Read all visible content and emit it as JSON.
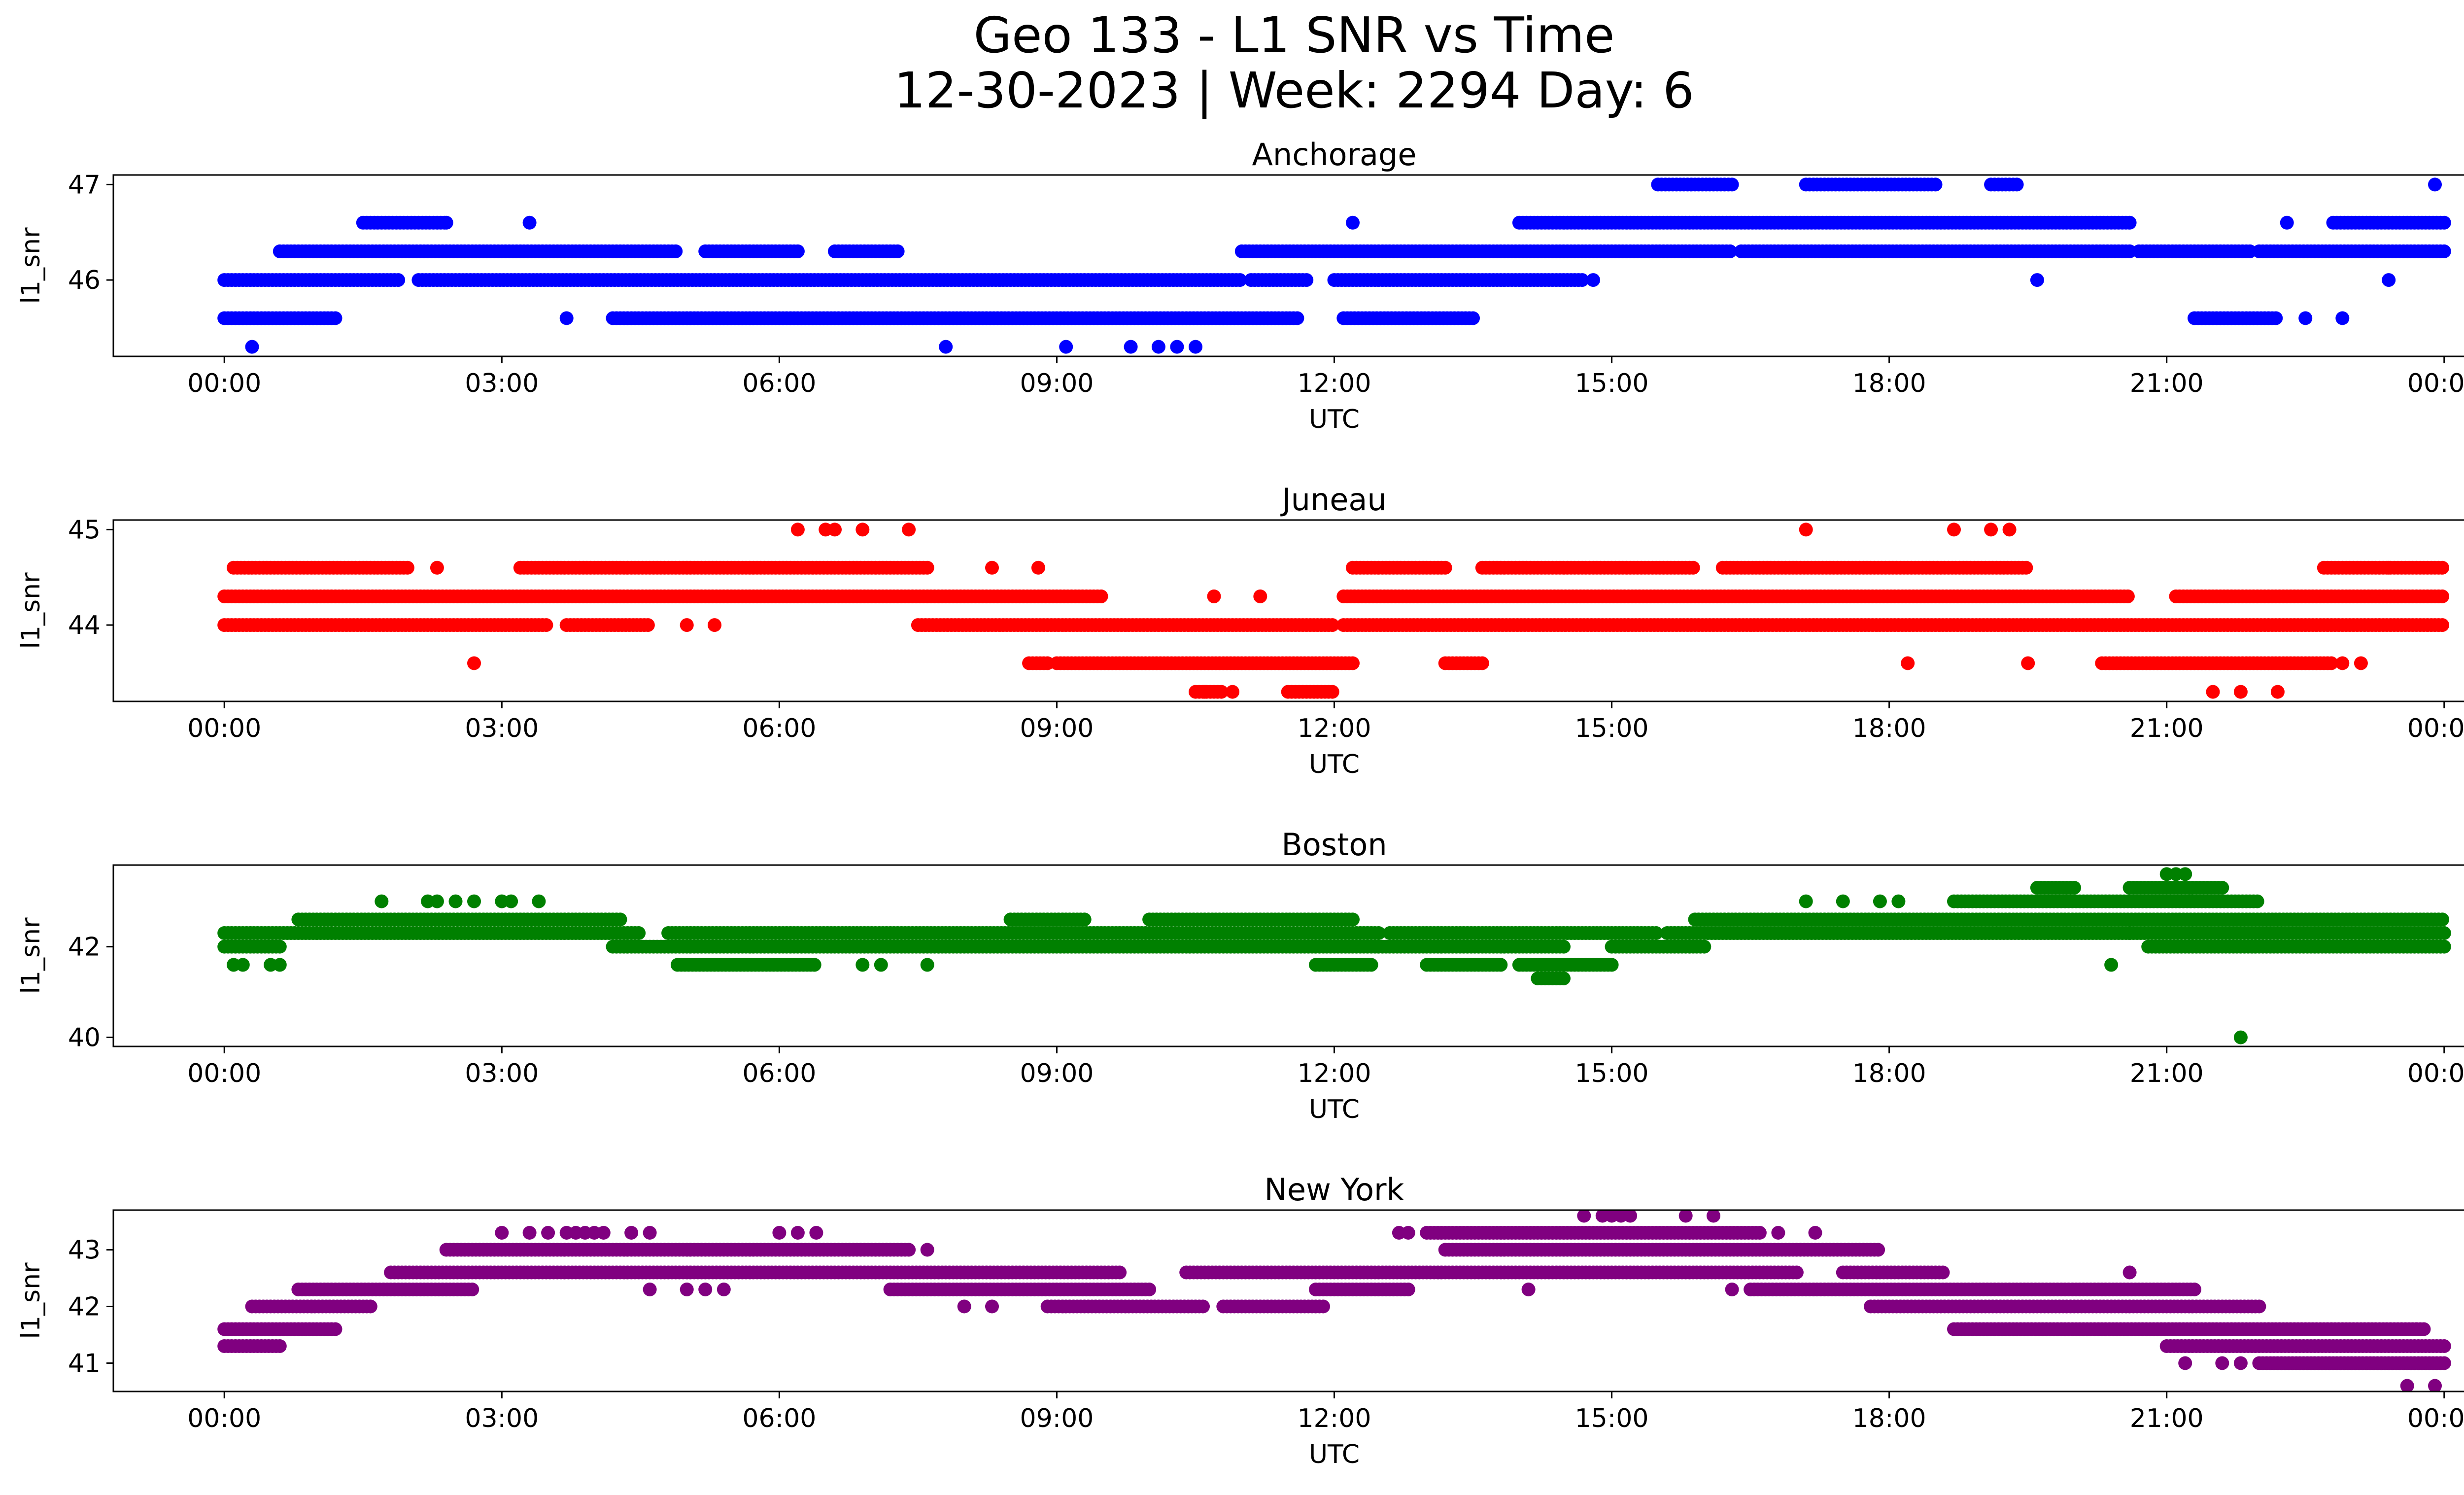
{
  "figure": {
    "title_line1": "Geo 133 - L1 SNR vs Time",
    "title_line2": "12-30-2023 | Week: 2294 Day: 6"
  },
  "x_tick_labels": [
    "00:00",
    "03:00",
    "06:00",
    "09:00",
    "12:00",
    "15:00",
    "18:00",
    "21:00",
    "00:00"
  ],
  "chart_data": [
    {
      "type": "scatter",
      "title": "Anchorage",
      "xlabel": "UTC",
      "ylabel": "l1_snr",
      "color": "#0000ff",
      "xlim_hours": [
        -1.2,
        25.2
      ],
      "ylim": [
        45.2,
        47.1
      ],
      "yticks": [
        46,
        47
      ],
      "tracks": [
        {
          "y": 46.0,
          "x": [
            0.0,
            1.9,
            2.1,
            11.0,
            11.1,
            11.7,
            12.0,
            14.7
          ]
        },
        {
          "y": 46.3,
          "x": [
            0.6,
            4.9,
            5.2,
            6.2,
            6.6,
            7.3,
            11.0,
            16.3,
            16.4,
            20.6,
            20.7,
            21.9,
            22.0,
            24.0
          ]
        },
        {
          "y": 45.6,
          "x": [
            0.0,
            1.2,
            4.2,
            11.6,
            12.1,
            13.5,
            21.3,
            22.2
          ]
        },
        {
          "y": 46.6,
          "x": [
            1.5,
            2.4,
            14.0,
            20.6,
            22.8,
            24.0
          ]
        },
        {
          "y": 47.0,
          "x": [
            15.5,
            16.3,
            17.1,
            18.5,
            19.1,
            19.4
          ]
        }
      ],
      "points": [
        {
          "x": 0.3,
          "y": 45.3
        },
        {
          "x": 7.8,
          "y": 45.3
        },
        {
          "x": 9.1,
          "y": 45.3
        },
        {
          "x": 9.8,
          "y": 45.3
        },
        {
          "x": 10.1,
          "y": 45.3
        },
        {
          "x": 10.3,
          "y": 45.3
        },
        {
          "x": 10.5,
          "y": 45.3
        },
        {
          "x": 2.4,
          "y": 46.6
        },
        {
          "x": 3.3,
          "y": 46.6
        },
        {
          "x": 12.2,
          "y": 46.6
        },
        {
          "x": 22.3,
          "y": 46.6
        },
        {
          "x": 3.7,
          "y": 45.6
        },
        {
          "x": 14.8,
          "y": 46.0
        },
        {
          "x": 19.6,
          "y": 46.0
        },
        {
          "x": 23.4,
          "y": 46.0
        },
        {
          "x": 22.5,
          "y": 45.6
        },
        {
          "x": 22.9,
          "y": 45.6
        },
        {
          "x": 23.9,
          "y": 47.0
        }
      ]
    },
    {
      "type": "scatter",
      "title": "Juneau",
      "xlabel": "UTC",
      "ylabel": "l1_snr",
      "color": "#ff0000",
      "xlim_hours": [
        -1.2,
        25.2
      ],
      "ylim": [
        43.2,
        45.1
      ],
      "yticks": [
        44,
        45
      ],
      "tracks": [
        {
          "y": 44.3,
          "x": [
            0.0,
            9.5,
            12.1,
            20.6,
            21.1,
            24.0
          ]
        },
        {
          "y": 44.0,
          "x": [
            0.0,
            3.5,
            3.7,
            4.6,
            7.5,
            12.0,
            12.1,
            24.0
          ]
        },
        {
          "y": 44.6,
          "x": [
            0.1,
            2.0,
            3.2,
            7.6,
            12.2,
            13.2,
            13.6,
            15.9,
            16.2,
            19.5,
            22.7,
            24.0
          ]
        },
        {
          "y": 43.6,
          "x": [
            8.7,
            8.9,
            9.0,
            12.2,
            13.2,
            13.6,
            20.3,
            22.8
          ]
        },
        {
          "y": 43.3,
          "x": [
            10.5,
            10.8,
            11.5,
            12.0
          ]
        }
      ],
      "points": [
        {
          "x": 6.2,
          "y": 45.0
        },
        {
          "x": 6.5,
          "y": 45.0
        },
        {
          "x": 6.6,
          "y": 45.0
        },
        {
          "x": 6.9,
          "y": 45.0
        },
        {
          "x": 7.4,
          "y": 45.0
        },
        {
          "x": 17.1,
          "y": 45.0
        },
        {
          "x": 18.7,
          "y": 45.0
        },
        {
          "x": 19.1,
          "y": 45.0
        },
        {
          "x": 19.3,
          "y": 45.0
        },
        {
          "x": 2.7,
          "y": 43.6
        },
        {
          "x": 18.2,
          "y": 43.6
        },
        {
          "x": 19.5,
          "y": 43.6
        },
        {
          "x": 22.9,
          "y": 43.6
        },
        {
          "x": 23.1,
          "y": 43.6
        },
        {
          "x": 10.6,
          "y": 43.3
        },
        {
          "x": 10.9,
          "y": 43.3
        },
        {
          "x": 21.5,
          "y": 43.3
        },
        {
          "x": 21.8,
          "y": 43.3
        },
        {
          "x": 22.2,
          "y": 43.3
        },
        {
          "x": 8.3,
          "y": 44.6
        },
        {
          "x": 8.8,
          "y": 44.6
        },
        {
          "x": 23.4,
          "y": 44.6
        },
        {
          "x": 2.3,
          "y": 44.6
        },
        {
          "x": 10.7,
          "y": 44.3
        },
        {
          "x": 11.2,
          "y": 44.3
        },
        {
          "x": 5.0,
          "y": 44.0
        },
        {
          "x": 5.3,
          "y": 44.0
        }
      ]
    },
    {
      "type": "scatter",
      "title": "Boston",
      "xlabel": "UTC",
      "ylabel": "l1_snr",
      "color": "#008000",
      "xlim_hours": [
        -1.2,
        25.2
      ],
      "ylim": [
        39.8,
        43.8
      ],
      "yticks": [
        40,
        42
      ],
      "tracks": [
        {
          "y": 42.0,
          "x": [
            0.0,
            0.6,
            4.2,
            14.5,
            15.0,
            16.0,
            20.8,
            24.0
          ]
        },
        {
          "y": 42.3,
          "x": [
            0.0,
            1.0,
            1.0,
            4.5,
            4.8,
            12.5,
            12.6,
            15.5,
            15.6,
            24.0
          ]
        },
        {
          "y": 42.6,
          "x": [
            0.8,
            4.3,
            8.5,
            9.3,
            10.0,
            12.2,
            15.9,
            24.0
          ]
        },
        {
          "y": 41.6,
          "x": [
            4.9,
            6.4,
            11.8,
            12.4,
            13.0,
            13.8,
            14.0,
            15.0
          ]
        },
        {
          "y": 43.0,
          "x": [
            18.7,
            22.0
          ]
        },
        {
          "y": 43.3,
          "x": [
            19.6,
            20.0,
            20.6,
            21.6
          ]
        },
        {
          "y": 41.3,
          "x": [
            14.2,
            14.5
          ]
        }
      ],
      "points": [
        {
          "x": 0.1,
          "y": 41.6
        },
        {
          "x": 0.2,
          "y": 41.6
        },
        {
          "x": 0.5,
          "y": 41.6
        },
        {
          "x": 0.6,
          "y": 41.6
        },
        {
          "x": 6.9,
          "y": 41.6
        },
        {
          "x": 7.1,
          "y": 41.6
        },
        {
          "x": 7.6,
          "y": 41.6
        },
        {
          "x": 1.7,
          "y": 43.0
        },
        {
          "x": 2.2,
          "y": 43.0
        },
        {
          "x": 2.3,
          "y": 43.0
        },
        {
          "x": 2.5,
          "y": 43.0
        },
        {
          "x": 2.7,
          "y": 43.0
        },
        {
          "x": 3.0,
          "y": 43.0
        },
        {
          "x": 3.1,
          "y": 43.0
        },
        {
          "x": 3.4,
          "y": 43.0
        },
        {
          "x": 17.1,
          "y": 43.0
        },
        {
          "x": 17.5,
          "y": 43.0
        },
        {
          "x": 17.9,
          "y": 43.0
        },
        {
          "x": 18.1,
          "y": 43.0
        },
        {
          "x": 21.0,
          "y": 43.6
        },
        {
          "x": 21.1,
          "y": 43.6
        },
        {
          "x": 21.2,
          "y": 43.6
        },
        {
          "x": 20.4,
          "y": 41.6
        },
        {
          "x": 21.8,
          "y": 40.0
        },
        {
          "x": 20.6,
          "y": 42.3
        }
      ]
    },
    {
      "type": "scatter",
      "title": "New York",
      "xlabel": "UTC",
      "ylabel": "l1_snr",
      "color": "#800080",
      "xlim_hours": [
        -1.2,
        25.2
      ],
      "ylim": [
        40.5,
        43.7
      ],
      "yticks": [
        41,
        42,
        43
      ],
      "tracks": [
        {
          "y": 41.3,
          "x": [
            0.0,
            0.6,
            21.0,
            24.0
          ]
        },
        {
          "y": 41.6,
          "x": [
            0.0,
            1.2,
            18.7,
            23.8
          ]
        },
        {
          "y": 42.0,
          "x": [
            0.3,
            1.6,
            8.9,
            10.6,
            10.8,
            11.9,
            17.8,
            22.0
          ]
        },
        {
          "y": 42.3,
          "x": [
            0.8,
            2.7,
            7.2,
            10.0,
            11.8,
            12.8,
            16.5,
            21.3
          ]
        },
        {
          "y": 42.6,
          "x": [
            1.8,
            9.7,
            10.4,
            17.0,
            17.5,
            18.6
          ]
        },
        {
          "y": 43.0,
          "x": [
            2.4,
            7.4,
            13.2,
            17.9
          ]
        },
        {
          "y": 43.3,
          "x": [
            13.0,
            16.6
          ]
        },
        {
          "y": 41.0,
          "x": [
            22.0,
            24.0
          ]
        }
      ],
      "points": [
        {
          "x": 3.0,
          "y": 43.3
        },
        {
          "x": 3.3,
          "y": 43.3
        },
        {
          "x": 3.5,
          "y": 43.3
        },
        {
          "x": 3.7,
          "y": 43.3
        },
        {
          "x": 3.8,
          "y": 43.3
        },
        {
          "x": 3.9,
          "y": 43.3
        },
        {
          "x": 4.0,
          "y": 43.3
        },
        {
          "x": 4.1,
          "y": 43.3
        },
        {
          "x": 4.4,
          "y": 43.3
        },
        {
          "x": 4.6,
          "y": 43.3
        },
        {
          "x": 6.0,
          "y": 43.3
        },
        {
          "x": 6.2,
          "y": 43.3
        },
        {
          "x": 6.4,
          "y": 43.3
        },
        {
          "x": 12.7,
          "y": 43.3
        },
        {
          "x": 12.8,
          "y": 43.3
        },
        {
          "x": 16.8,
          "y": 43.3
        },
        {
          "x": 17.2,
          "y": 43.3
        },
        {
          "x": 14.7,
          "y": 43.6
        },
        {
          "x": 14.9,
          "y": 43.6
        },
        {
          "x": 15.0,
          "y": 43.6
        },
        {
          "x": 15.1,
          "y": 43.6
        },
        {
          "x": 15.2,
          "y": 43.6
        },
        {
          "x": 15.8,
          "y": 43.6
        },
        {
          "x": 16.1,
          "y": 43.6
        },
        {
          "x": 7.6,
          "y": 43.0
        },
        {
          "x": 4.6,
          "y": 42.3
        },
        {
          "x": 5.0,
          "y": 42.3
        },
        {
          "x": 5.2,
          "y": 42.3
        },
        {
          "x": 5.4,
          "y": 42.3
        },
        {
          "x": 8.0,
          "y": 42.0
        },
        {
          "x": 8.3,
          "y": 42.0
        },
        {
          "x": 14.1,
          "y": 42.3
        },
        {
          "x": 16.3,
          "y": 42.3
        },
        {
          "x": 20.6,
          "y": 42.6
        },
        {
          "x": 21.2,
          "y": 41.0
        },
        {
          "x": 21.6,
          "y": 41.0
        },
        {
          "x": 21.8,
          "y": 41.0
        },
        {
          "x": 23.6,
          "y": 40.6
        },
        {
          "x": 23.9,
          "y": 40.6
        },
        {
          "x": 23.7,
          "y": 41.6
        }
      ]
    }
  ]
}
